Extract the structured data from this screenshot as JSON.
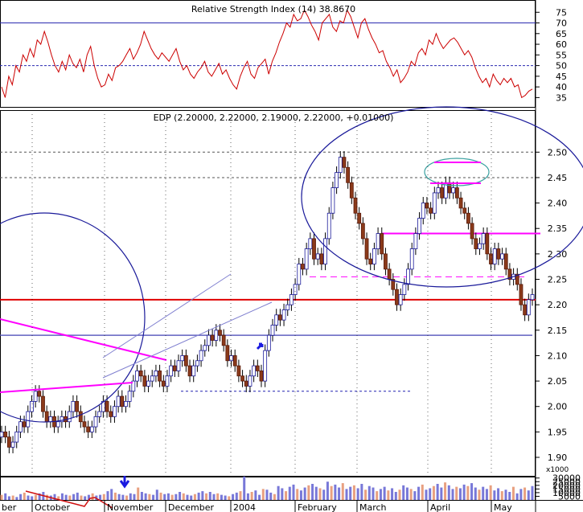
{
  "chart_data": [
    {
      "type": "line",
      "title": "Relative Strength Index (14) 38.8670",
      "ylim": [
        31,
        80
      ],
      "yticks": [
        35,
        40,
        45,
        50,
        55,
        60,
        65,
        70,
        75
      ],
      "reference_lines": [
        {
          "value": 70,
          "style": "solid"
        },
        {
          "value": 50,
          "style": "dashed"
        }
      ],
      "series": [
        {
          "values": [
            40,
            35,
            45,
            41,
            50,
            47,
            55,
            52,
            58,
            54,
            62,
            60,
            66,
            61,
            55,
            50,
            47,
            52,
            48,
            55,
            51,
            49,
            53,
            47,
            55,
            59,
            50,
            44,
            40,
            41,
            46,
            43,
            49,
            50,
            52,
            55,
            58,
            53,
            56,
            60,
            66,
            62,
            58,
            55,
            53,
            56,
            54,
            52,
            55,
            58,
            52,
            48,
            50,
            46,
            44,
            47,
            49,
            52,
            47,
            45,
            48,
            51,
            46,
            48,
            44,
            41,
            39,
            45,
            49,
            52,
            46,
            44,
            49,
            51,
            53,
            46,
            52,
            56,
            61,
            65,
            70,
            68,
            74,
            71,
            72,
            76,
            73,
            69,
            66,
            62,
            70,
            72,
            74,
            68,
            66,
            71,
            70,
            76,
            73,
            68,
            63,
            70,
            72,
            67,
            63,
            60,
            56,
            57,
            52,
            49,
            45,
            48,
            42,
            44,
            47,
            52,
            50,
            56,
            58,
            55,
            62,
            60,
            65,
            61,
            58,
            60,
            62,
            63,
            61,
            58,
            55,
            57,
            54,
            49,
            45,
            42,
            44,
            40,
            46,
            43,
            41,
            44,
            42,
            44,
            40,
            41,
            35,
            36,
            38,
            39
          ]
        }
      ]
    },
    {
      "type": "candlestick",
      "title": "EDP (2.20000, 2.22000, 2.19000, 2.22000, +0.01000)",
      "ylim": [
        1.87,
        2.57
      ],
      "yticks": [
        1.9,
        1.95,
        2.0,
        2.05,
        2.1,
        2.15,
        2.2,
        2.25,
        2.3,
        2.35,
        2.4,
        2.45,
        2.5
      ],
      "x_labels": [
        "ber",
        "October",
        "November",
        "December",
        "2004",
        "February",
        "March",
        "April",
        "May"
      ],
      "closes": [
        1.95,
        1.94,
        1.92,
        1.93,
        1.95,
        1.97,
        1.96,
        1.99,
        2.01,
        2.03,
        2.02,
        1.99,
        1.97,
        1.98,
        1.96,
        1.97,
        1.98,
        1.97,
        1.99,
        2.01,
        1.99,
        1.97,
        1.96,
        1.95,
        1.96,
        1.98,
        1.99,
        2.01,
        1.99,
        1.98,
        2.0,
        2.02,
        2.0,
        2.01,
        2.03,
        2.05,
        2.07,
        2.06,
        2.04,
        2.05,
        2.06,
        2.07,
        2.05,
        2.04,
        2.06,
        2.08,
        2.07,
        2.09,
        2.1,
        2.08,
        2.06,
        2.08,
        2.09,
        2.11,
        2.12,
        2.14,
        2.13,
        2.15,
        2.14,
        2.12,
        2.09,
        2.1,
        2.08,
        2.06,
        2.05,
        2.04,
        2.06,
        2.08,
        2.07,
        2.05,
        2.11,
        2.14,
        2.16,
        2.18,
        2.17,
        2.19,
        2.2,
        2.22,
        2.24,
        2.28,
        2.27,
        2.31,
        2.33,
        2.29,
        2.3,
        2.28,
        2.33,
        2.38,
        2.43,
        2.46,
        2.49,
        2.47,
        2.44,
        2.41,
        2.38,
        2.36,
        2.33,
        2.29,
        2.28,
        2.31,
        2.34,
        2.3,
        2.27,
        2.25,
        2.23,
        2.2,
        2.22,
        2.24,
        2.27,
        2.31,
        2.34,
        2.37,
        2.4,
        2.39,
        2.38,
        2.42,
        2.43,
        2.41,
        2.44,
        2.42,
        2.43,
        2.41,
        2.39,
        2.38,
        2.36,
        2.33,
        2.31,
        2.32,
        2.34,
        2.3,
        2.28,
        2.31,
        2.29,
        2.3,
        2.27,
        2.25,
        2.26,
        2.24,
        2.2,
        2.18,
        2.21,
        2.22
      ],
      "reference_lines": [
        {
          "value": 2.5,
          "style": "dotted"
        },
        {
          "value": 2.45,
          "style": "dotted"
        },
        {
          "value": 2.21,
          "style": "solid-red"
        },
        {
          "value": 2.14,
          "style": "solid"
        },
        {
          "value": 2.03,
          "style": "dashed-blue"
        },
        {
          "value": 2.34,
          "style": "magenta"
        },
        {
          "value": 2.255,
          "style": "magenta-dashed"
        }
      ]
    },
    {
      "type": "bar",
      "ylabel": "x1000",
      "ylim": [
        0,
        33000
      ],
      "yticks": [
        5000,
        10000,
        15000,
        20000,
        25000,
        30000
      ],
      "values": [
        7,
        9,
        5,
        6,
        4,
        8,
        10,
        6,
        5,
        7,
        9,
        11,
        7,
        6,
        8,
        5,
        9,
        7,
        6,
        8,
        10,
        6,
        5,
        7,
        9,
        6,
        7,
        8,
        12,
        15,
        10,
        8,
        7,
        6,
        9,
        8,
        17,
        11,
        9,
        8,
        7,
        14,
        10,
        8,
        9,
        7,
        8,
        11,
        9,
        7,
        6,
        8,
        10,
        12,
        9,
        11,
        8,
        9,
        7,
        6,
        5,
        8,
        10,
        12,
        32,
        9,
        11,
        13,
        7,
        15,
        14,
        10,
        8,
        19,
        16,
        12,
        18,
        21,
        15,
        13,
        17,
        20,
        22,
        18,
        16,
        14,
        25,
        19,
        21,
        17,
        23,
        15,
        18,
        20,
        16,
        22,
        14,
        19,
        17,
        12,
        15,
        18,
        13,
        16,
        11,
        14,
        20,
        17,
        15,
        12,
        18,
        21,
        14,
        16,
        19,
        22,
        17,
        24,
        20,
        15,
        18,
        16,
        21,
        19,
        23,
        17,
        14,
        18,
        15,
        20,
        13,
        16,
        12,
        14,
        11,
        18,
        9,
        15,
        17,
        13,
        19
      ]
    }
  ]
}
